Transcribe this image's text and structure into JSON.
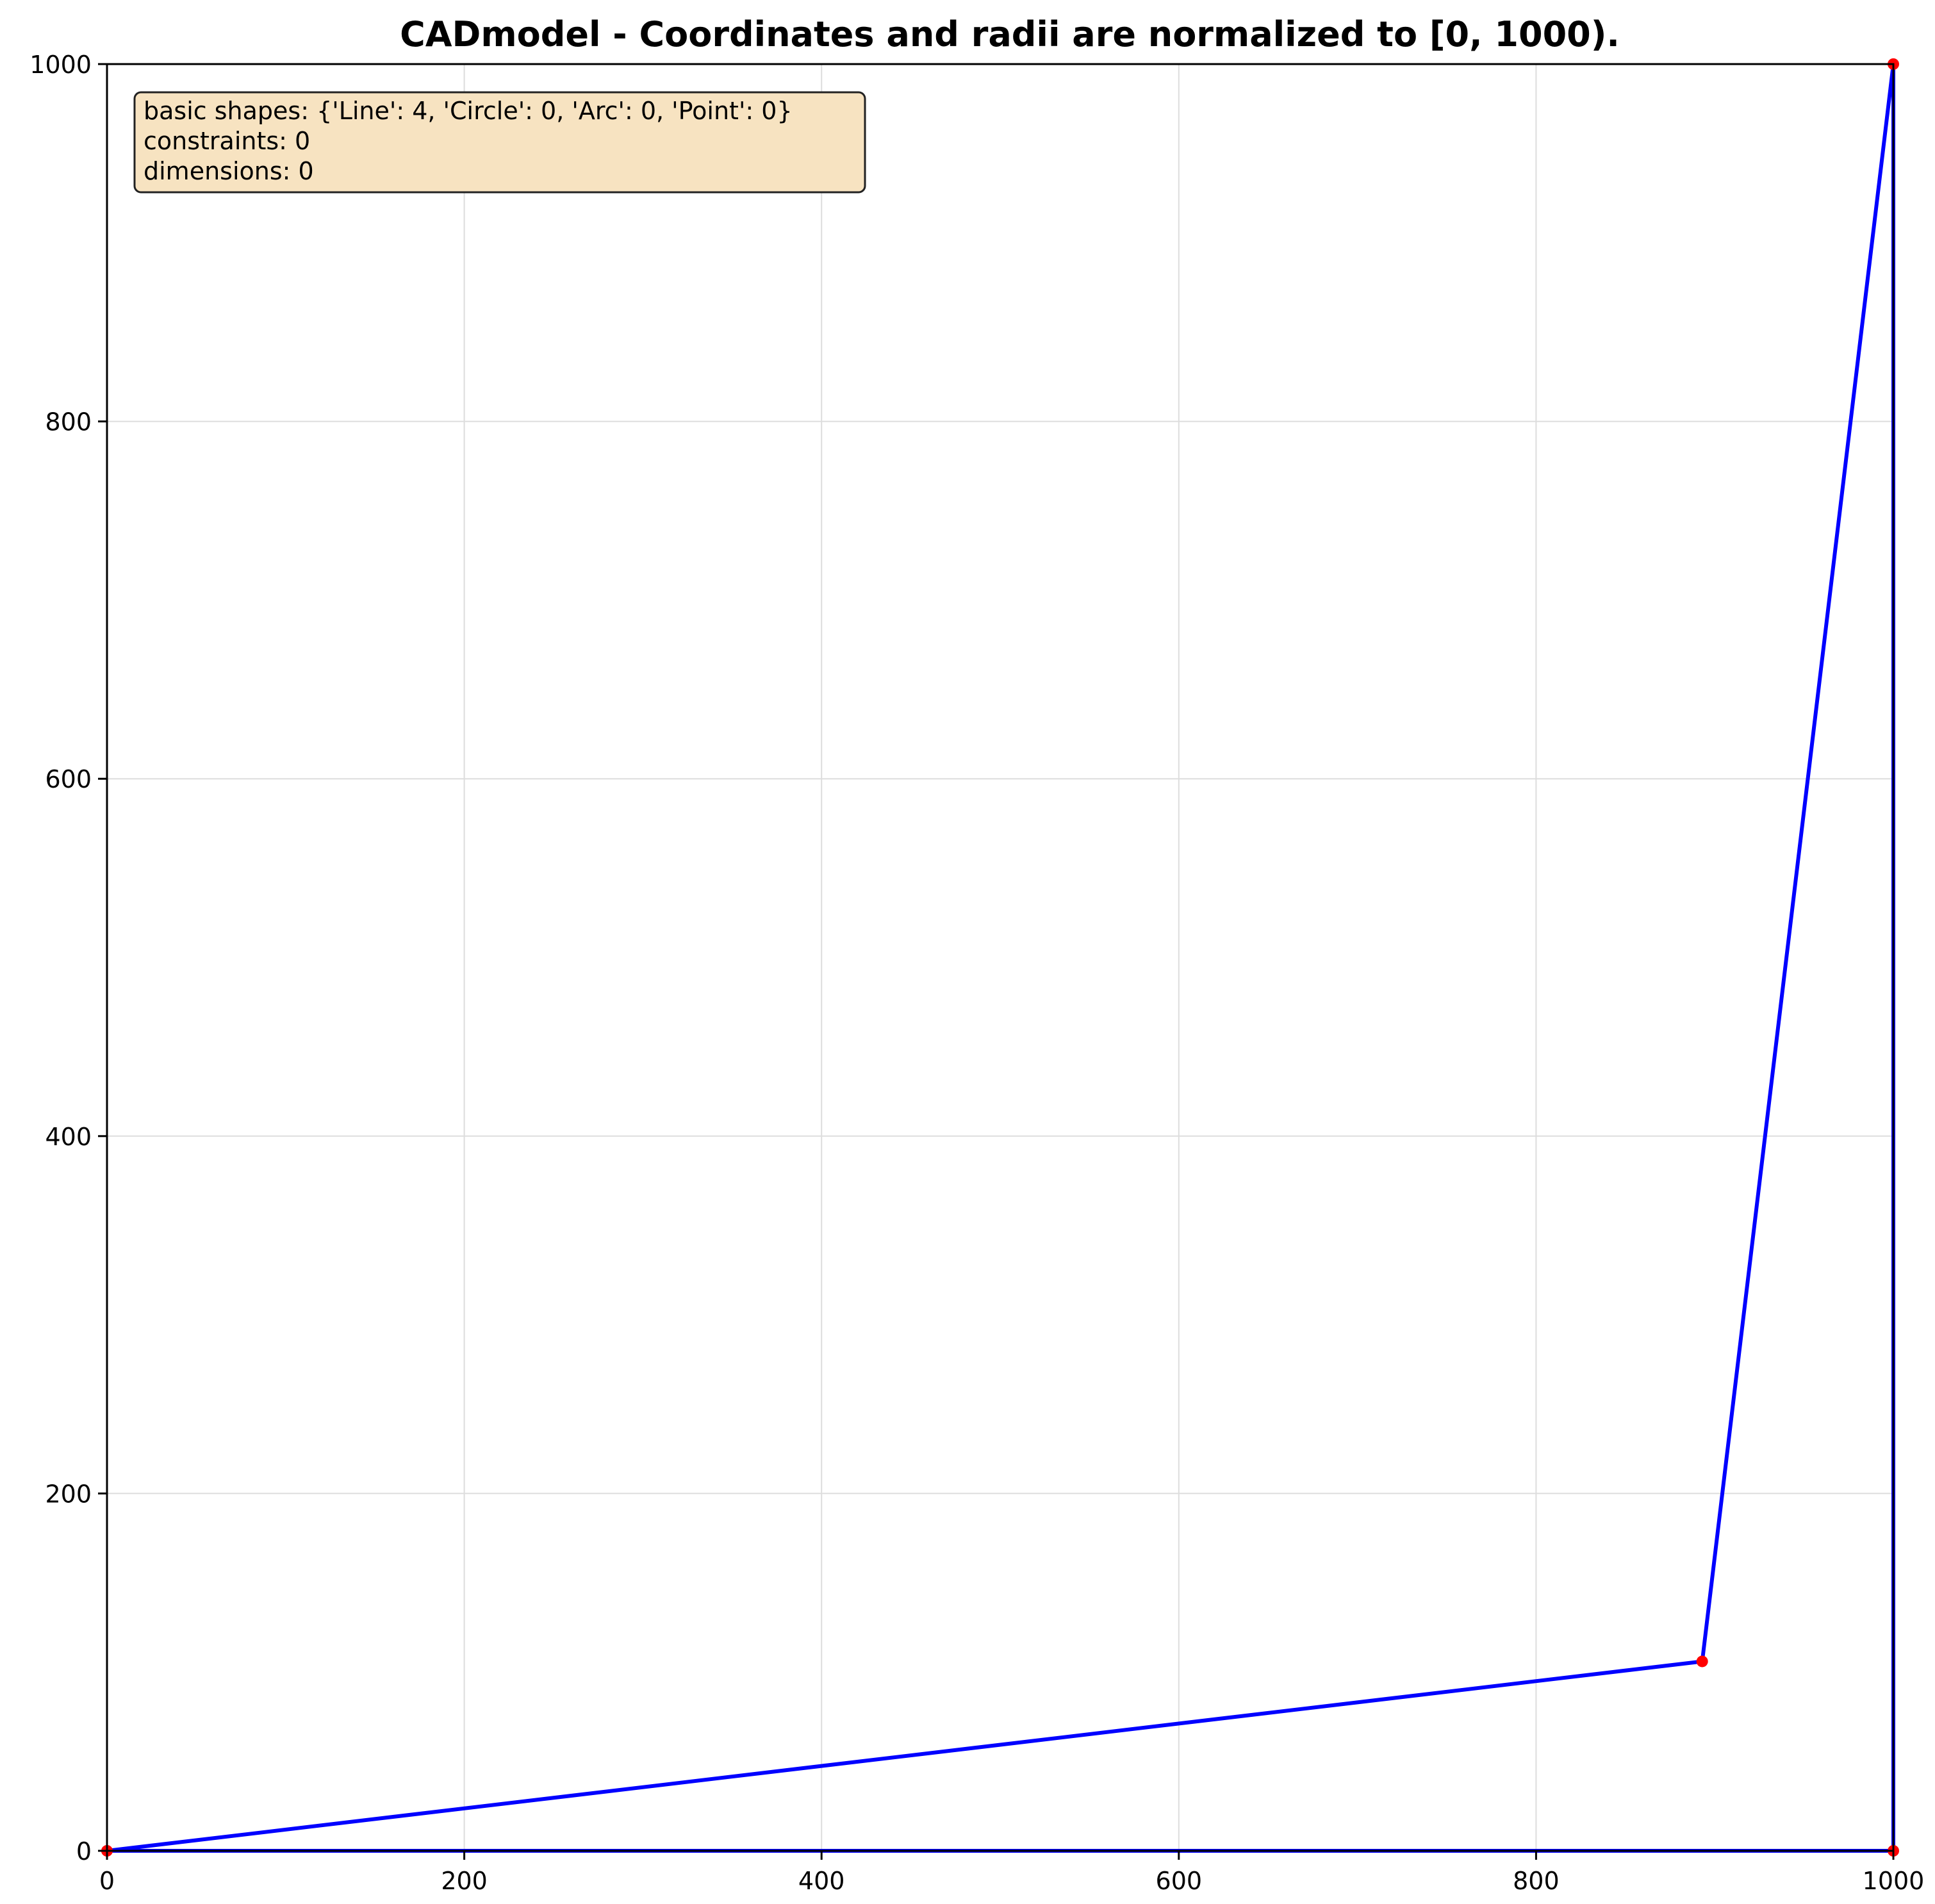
{
  "title": "CADmodel - Coordinates and radii are normalized to [0, 1000).",
  "info_box": {
    "lines": [
      "basic shapes: {'Line': 4, 'Circle': 0, 'Arc': 0, 'Point': 0}",
      "constraints: 0",
      "dimensions: 0"
    ],
    "background": "#f7e3c1",
    "border": "#222222"
  },
  "chart_data": {
    "type": "scatter",
    "xlim": [
      0,
      1000
    ],
    "ylim": [
      0,
      1000
    ],
    "x_ticks": [
      0,
      200,
      400,
      600,
      800,
      1000
    ],
    "y_ticks": [
      0,
      200,
      400,
      600,
      800,
      1000
    ],
    "x_tick_labels": [
      "0",
      "200",
      "400",
      "600",
      "800",
      "1000"
    ],
    "y_tick_labels": [
      "0",
      "200",
      "400",
      "600",
      "800",
      "1000"
    ],
    "grid": true,
    "lines": [
      {
        "x1": 0,
        "y1": 0,
        "x2": 893,
        "y2": 106
      },
      {
        "x1": 893,
        "y1": 106,
        "x2": 1000,
        "y2": 1000
      },
      {
        "x1": 1000,
        "y1": 1000,
        "x2": 1000,
        "y2": 0
      },
      {
        "x1": 1000,
        "y1": 0,
        "x2": 0,
        "y2": 0
      }
    ],
    "points": [
      {
        "x": 0,
        "y": 0
      },
      {
        "x": 893,
        "y": 106
      },
      {
        "x": 1000,
        "y": 1000
      },
      {
        "x": 1000,
        "y": 0
      }
    ],
    "line_color": "#0000ff",
    "point_color": "#ff0000",
    "grid_color": "#dddddd"
  }
}
